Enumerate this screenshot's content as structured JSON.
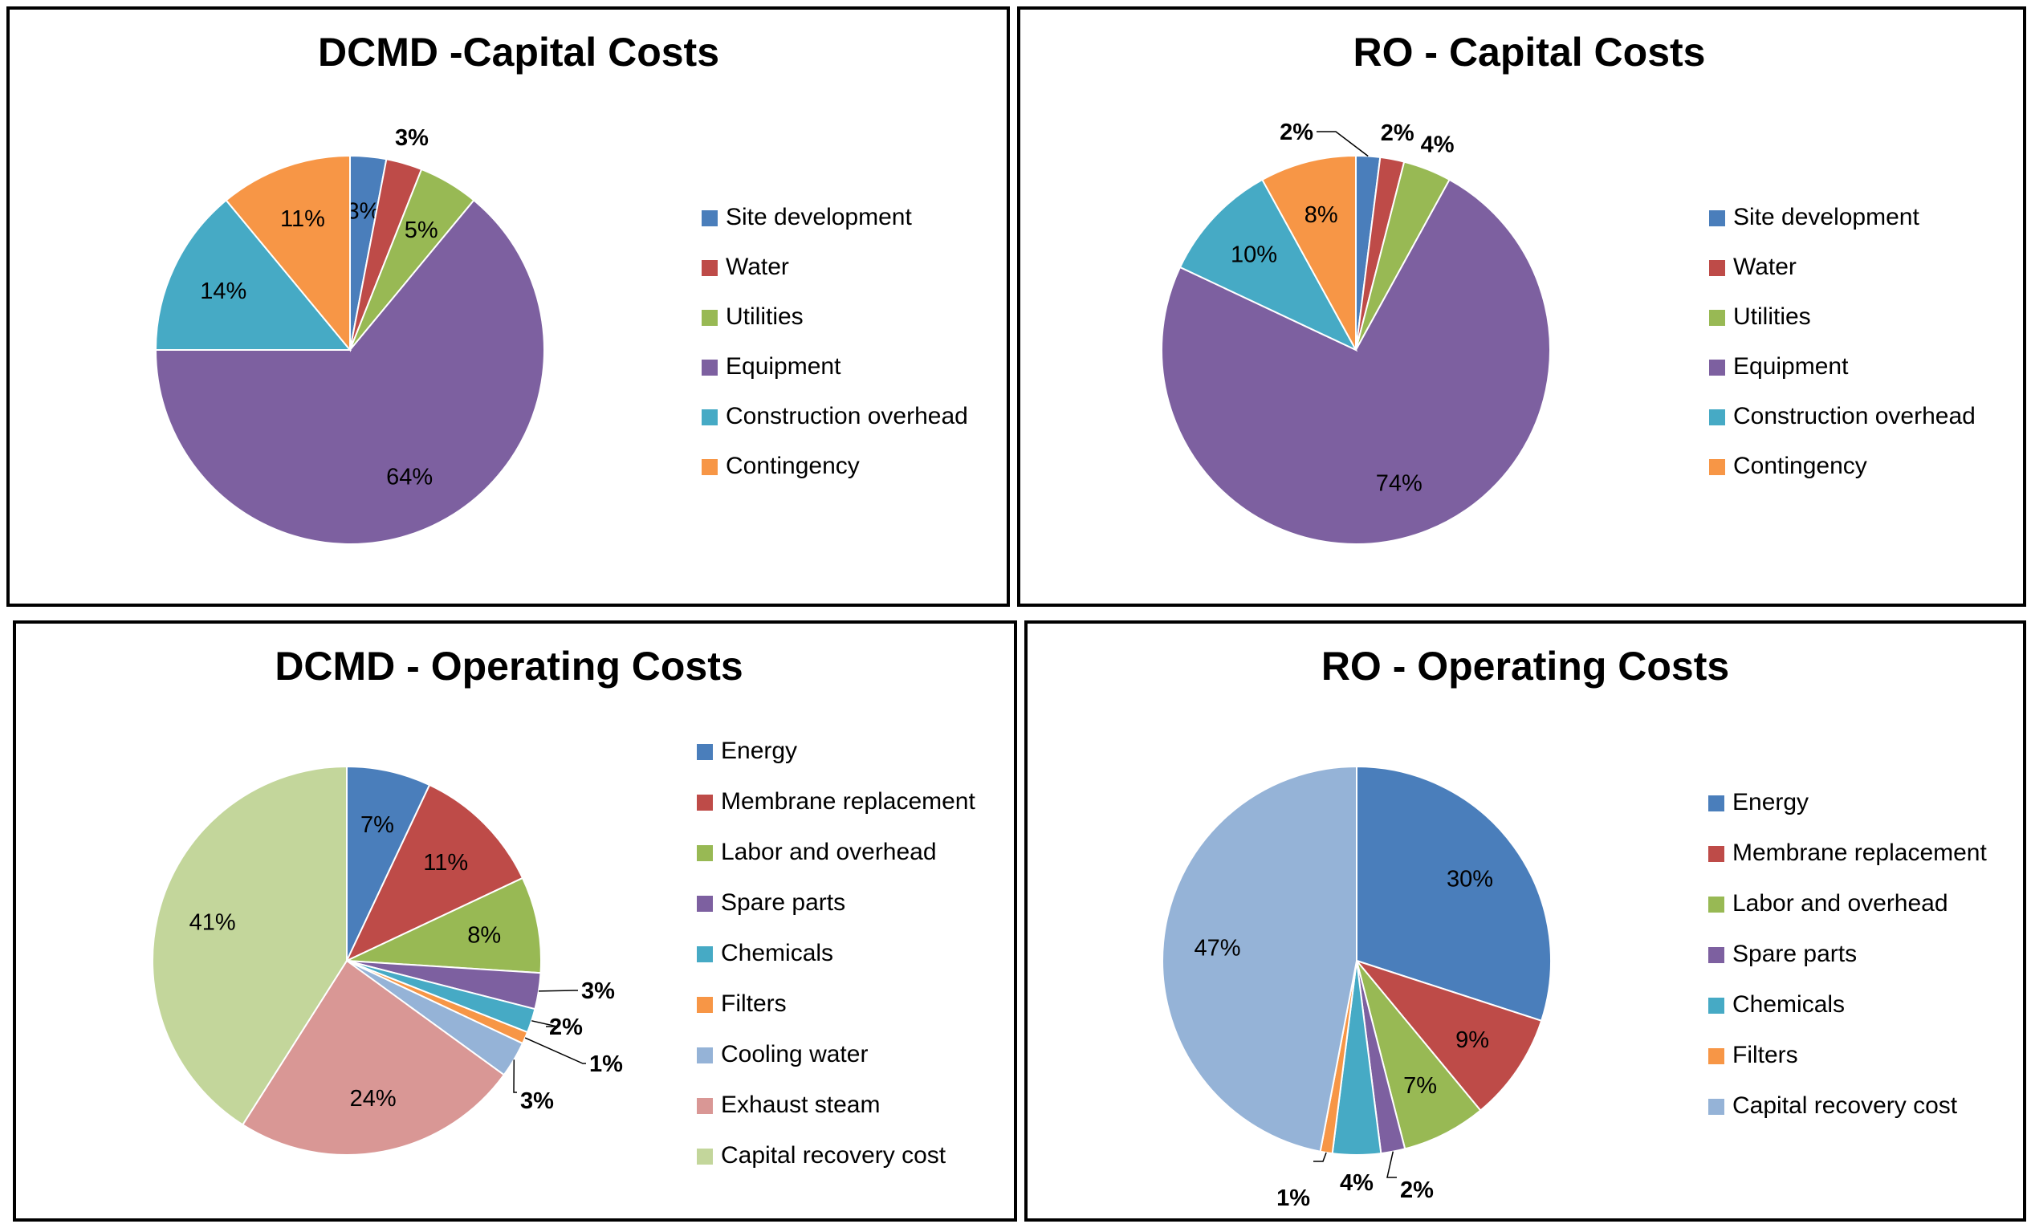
{
  "chart_data": [
    {
      "type": "pie",
      "title": "DCMD -Capital Costs",
      "categories": [
        "Site development",
        "Water",
        "Utilities",
        "Equipment",
        "Construction overhead",
        "Contingency"
      ],
      "values": [
        3,
        3,
        5,
        64,
        14,
        11
      ],
      "labels": [
        "3%",
        "3%",
        "5%",
        "64%",
        "14%",
        "11%"
      ],
      "colors": [
        "#4a7ebb",
        "#be4b48",
        "#98b954",
        "#7d60a0",
        "#46aac5",
        "#f79646"
      ],
      "legend_position": "right"
    },
    {
      "type": "pie",
      "title": "RO - Capital Costs",
      "categories": [
        "Site development",
        "Water",
        "Utilities",
        "Equipment",
        "Construction overhead",
        "Contingency"
      ],
      "values": [
        2,
        2,
        4,
        74,
        10,
        8
      ],
      "labels": [
        "2%",
        "2%",
        "4%",
        "74%",
        "10%",
        "8%"
      ],
      "colors": [
        "#4a7ebb",
        "#be4b48",
        "#98b954",
        "#7d60a0",
        "#46aac5",
        "#f79646"
      ],
      "legend_position": "right"
    },
    {
      "type": "pie",
      "title": "DCMD - Operating Costs",
      "categories": [
        "Energy",
        "Membrane replacement",
        "Labor and overhead",
        "Spare parts",
        "Chemicals",
        "Filters",
        "Cooling water",
        "Exhaust steam",
        "Capital recovery cost"
      ],
      "values": [
        7,
        11,
        8,
        3,
        2,
        1,
        3,
        24,
        41
      ],
      "labels": [
        "7%",
        "11%",
        "8%",
        "3%",
        "2%",
        "1%",
        "3%",
        "24%",
        "41%"
      ],
      "colors": [
        "#4a7ebb",
        "#be4b48",
        "#98b954",
        "#7d60a0",
        "#46aac5",
        "#f79646",
        "#95b3d7",
        "#d99795",
        "#c3d69b"
      ],
      "legend_position": "right"
    },
    {
      "type": "pie",
      "title": "RO - Operating Costs",
      "categories": [
        "Energy",
        "Membrane replacement",
        "Labor and overhead",
        "Spare parts",
        "Chemicals",
        "Filters",
        "Capital recovery cost"
      ],
      "values": [
        30,
        9,
        7,
        2,
        4,
        1,
        47
      ],
      "labels": [
        "30%",
        "9%",
        "7%",
        "2%",
        "4%",
        "1%",
        "47%"
      ],
      "colors": [
        "#4a7ebb",
        "#be4b48",
        "#98b954",
        "#7d60a0",
        "#46aac5",
        "#f79646",
        "#95b3d7"
      ],
      "legend_position": "right"
    }
  ]
}
